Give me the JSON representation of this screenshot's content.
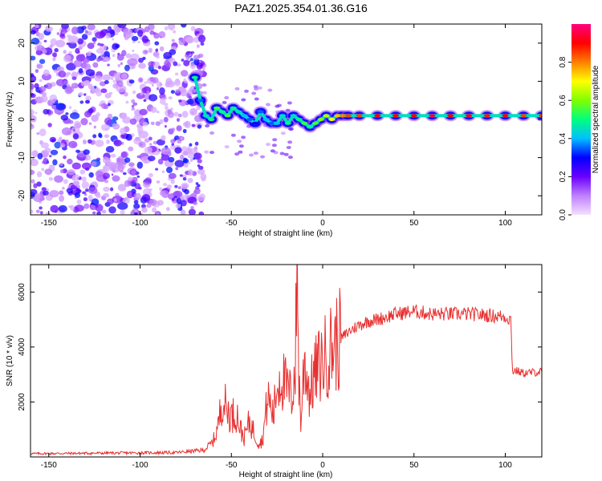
{
  "page": {
    "title": "PAZ1.2025.354.01.36.G16"
  },
  "chart_data": [
    {
      "type": "heatmap",
      "id": "spectrogram",
      "ylabel": "Frequency (Hz)",
      "xlabel": "Height of straight line (km)",
      "xlim": [
        -160,
        120
      ],
      "ylim": [
        -25,
        25
      ],
      "xticks": [
        -150,
        -100,
        -50,
        0,
        50,
        100
      ],
      "yticks": [
        -20,
        -10,
        0,
        10,
        20
      ],
      "colorbar": {
        "label": "Normalized spectral amplitude",
        "range": [
          0,
          1
        ],
        "ticks": [
          "0.0",
          "0.2",
          "0.4",
          "0.6",
          "0.8"
        ],
        "tick_values": [
          0,
          0.2,
          0.4,
          0.6,
          0.8
        ],
        "colors": [
          "#f4e0ff",
          "#c080ff",
          "#6a00ff",
          "#0000ff",
          "#00bfff",
          "#00ff7f",
          "#7fff00",
          "#ffff00",
          "#ff7f00",
          "#ff0000",
          "#ff0080"
        ]
      },
      "ridge_track": {
        "height_km": [
          -70,
          -67,
          -64,
          -61,
          -58,
          -55,
          -52,
          -49,
          -46,
          -43,
          -40,
          -37,
          -34,
          -31,
          -28,
          -25,
          -22,
          -19,
          -16,
          -13,
          -10,
          -7,
          -4,
          -1,
          2,
          5,
          8,
          11,
          14,
          20,
          30,
          40,
          50,
          60,
          70,
          80,
          90,
          100,
          110,
          120
        ],
        "frequency_hz": [
          11,
          5,
          1,
          0,
          3,
          2,
          1,
          3,
          2,
          1,
          0,
          -1,
          2,
          0,
          -1,
          -1,
          1,
          -1,
          1,
          0,
          -1,
          -2,
          -1,
          0,
          1,
          0,
          1,
          1,
          1,
          1,
          1,
          1,
          1,
          1,
          1,
          1,
          1,
          1,
          1,
          1
        ],
        "amplitude": [
          0.5,
          0.35,
          0.45,
          0.5,
          0.55,
          0.5,
          0.55,
          0.5,
          0.45,
          0.4,
          0.35,
          0.3,
          0.35,
          0.4,
          0.35,
          0.4,
          0.45,
          0.5,
          0.45,
          0.5,
          0.55,
          0.5,
          0.55,
          0.6,
          0.65,
          0.7,
          0.75,
          0.8,
          0.85,
          0.85,
          0.9,
          0.9,
          0.9,
          0.95,
          0.9,
          0.92,
          0.88,
          0.9,
          0.85,
          0.85
        ]
      }
    },
    {
      "type": "line",
      "id": "snr",
      "ylabel": "SNR (10 * v/v)",
      "xlabel": "Height of straight line (km)",
      "xlim": [
        -160,
        120
      ],
      "ylim": [
        0,
        7000
      ],
      "xticks": [
        -150,
        -100,
        -50,
        0,
        50,
        100
      ],
      "yticks": [
        2000,
        4000,
        6000
      ],
      "series": [
        {
          "name": "SNR",
          "color": "#e83030",
          "x": [
            -160,
            -120,
            -80,
            -65,
            -60,
            -57,
            -55,
            -53,
            -50,
            -47,
            -45,
            -43,
            -40,
            -37,
            -35,
            -33,
            -30,
            -27,
            -25,
            -23,
            -20,
            -17,
            -15,
            -14,
            -13,
            -12,
            -10,
            -7,
            -5,
            -3,
            0,
            5,
            10,
            15,
            20,
            25,
            30,
            35,
            40,
            45,
            50,
            55,
            60,
            70,
            80,
            90,
            100,
            103,
            104,
            105,
            110,
            120
          ],
          "y": [
            120,
            140,
            160,
            250,
            550,
            1200,
            2200,
            1800,
            1500,
            1600,
            1000,
            700,
            1300,
            800,
            500,
            600,
            2200,
            1500,
            2600,
            3000,
            2500,
            2200,
            3300,
            7000,
            3000,
            1200,
            3600,
            2300,
            2900,
            3200,
            3500,
            4000,
            4300,
            4600,
            4800,
            4950,
            5000,
            5100,
            5200,
            5250,
            5300,
            5250,
            5200,
            5200,
            5200,
            5150,
            5100,
            5000,
            3100,
            3150,
            3050,
            3100
          ]
        }
      ]
    }
  ]
}
